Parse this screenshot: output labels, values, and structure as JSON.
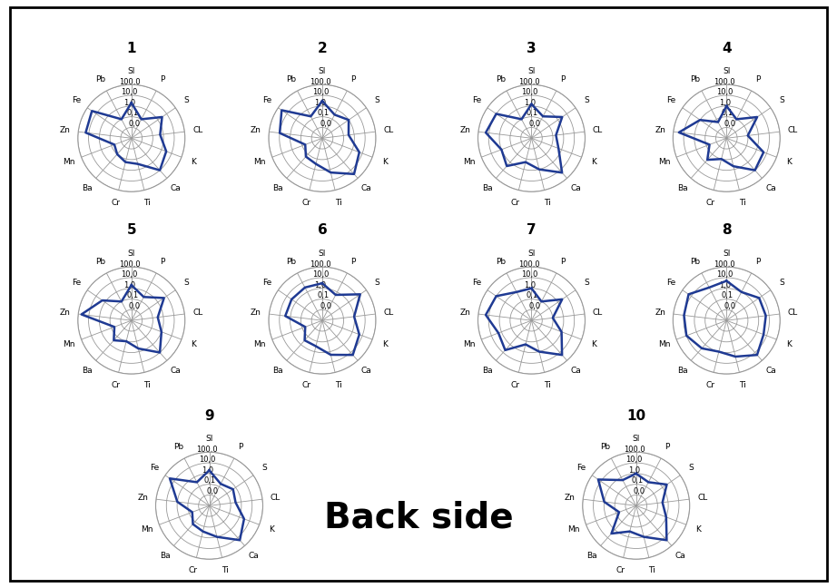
{
  "chart_data": [
    {
      "type": "radar",
      "title": "1",
      "categories": [
        "SI",
        "P",
        "S",
        "CL",
        "K",
        "Ca",
        "Ti",
        "Cr",
        "Ba",
        "Mn",
        "Zn",
        "Fe",
        "Pb"
      ],
      "values": [
        2,
        0.1,
        3,
        0.5,
        3,
        10,
        0.3,
        0.2,
        0.1,
        0.05,
        20,
        30,
        0.1
      ],
      "color": "#1f3a93",
      "log": "y",
      "grid": true,
      "ylim": [
        0.001,
        100
      ],
      "yticks": [
        {
          "value": 0.01,
          "label": "0,0"
        },
        {
          "value": 0.1,
          "label": "0,1"
        },
        {
          "value": 1,
          "label": "1,0"
        },
        {
          "value": 10,
          "label": "10,0"
        },
        {
          "value": 100,
          "label": "100,0"
        }
      ]
    },
    {
      "type": "radar",
      "title": "2",
      "categories": [
        "SI",
        "P",
        "S",
        "CL",
        "K",
        "Ca",
        "Ti",
        "Cr",
        "Ba",
        "Mn",
        "Zn",
        "Fe",
        "Pb"
      ],
      "values": [
        3,
        0.3,
        1,
        0.3,
        5,
        30,
        2,
        0.3,
        0.2,
        0.05,
        10,
        40,
        0.2
      ],
      "color": "#1f3a93",
      "log": "y",
      "grid": true,
      "ylim": [
        0.001,
        100
      ],
      "yticks": [
        {
          "value": 0.01,
          "label": "0,0"
        },
        {
          "value": 0.1,
          "label": "0,1"
        },
        {
          "value": 1,
          "label": "1,0"
        },
        {
          "value": 10,
          "label": "10,0"
        },
        {
          "value": 100,
          "label": "100,0"
        }
      ]
    },
    {
      "type": "radar",
      "title": "3",
      "categories": [
        "SI",
        "P",
        "S",
        "CL",
        "K",
        "Ca",
        "Ti",
        "Cr",
        "Ba",
        "Mn",
        "Zn",
        "Fe",
        "Pb"
      ],
      "values": [
        1.5,
        0.2,
        3,
        0.2,
        0.5,
        20,
        1,
        0.2,
        3,
        1,
        20,
        10,
        0.1
      ],
      "color": "#1f3a93",
      "log": "y",
      "grid": true,
      "ylim": [
        0.001,
        100
      ],
      "yticks": [
        {
          "value": 0.01,
          "label": "0,0"
        },
        {
          "value": 0.1,
          "label": "0,1"
        },
        {
          "value": 1,
          "label": "1,0"
        },
        {
          "value": 10,
          "label": "10,0"
        },
        {
          "value": 100,
          "label": "100,0"
        }
      ]
    },
    {
      "type": "radar",
      "title": "4",
      "categories": [
        "SI",
        "P",
        "S",
        "CL",
        "K",
        "Ca",
        "Ti",
        "Cr",
        "Ba",
        "Mn",
        "Zn",
        "Fe",
        "Pb"
      ],
      "values": [
        1,
        0.1,
        3,
        0.1,
        5,
        10,
        0.5,
        0.1,
        0.5,
        0.05,
        30,
        1,
        0.05
      ],
      "color": "#1f3a93",
      "log": "y",
      "grid": true,
      "ylim": [
        0.001,
        100
      ],
      "yticks": [
        {
          "value": 0.01,
          "label": "0,0"
        },
        {
          "value": 0.1,
          "label": "0,1"
        },
        {
          "value": 1,
          "label": "1,0"
        },
        {
          "value": 10,
          "label": "10,0"
        },
        {
          "value": 100,
          "label": "100,0"
        }
      ]
    },
    {
      "type": "radar",
      "title": "5",
      "categories": [
        "SI",
        "P",
        "S",
        "CL",
        "K",
        "Ca",
        "Ti",
        "Cr",
        "Ba",
        "Mn",
        "Zn",
        "Fe",
        "Pb"
      ],
      "values": [
        2,
        0.3,
        5,
        0.3,
        1,
        10,
        0.5,
        0.1,
        0.3,
        0.05,
        50,
        2,
        0.1
      ],
      "color": "#1f3a93",
      "log": "y",
      "grid": true,
      "ylim": [
        0.001,
        100
      ],
      "yticks": [
        {
          "value": 0.01,
          "label": "0,0"
        },
        {
          "value": 0.1,
          "label": "0,1"
        },
        {
          "value": 1,
          "label": "1,0"
        },
        {
          "value": 10,
          "label": "10,0"
        },
        {
          "value": 100,
          "label": "100,0"
        }
      ]
    },
    {
      "type": "radar",
      "title": "6",
      "categories": [
        "SI",
        "P",
        "S",
        "CL",
        "K",
        "Ca",
        "Ti",
        "Cr",
        "Ba",
        "Mn",
        "Zn",
        "Fe",
        "Pb"
      ],
      "values": [
        3,
        0.5,
        20,
        1,
        5,
        20,
        2,
        0.3,
        0.3,
        0.05,
        3,
        3,
        3
      ],
      "color": "#1f3a93",
      "log": "y",
      "grid": true,
      "ylim": [
        0.001,
        100
      ],
      "yticks": [
        {
          "value": 0.01,
          "label": "0,0"
        },
        {
          "value": 0.1,
          "label": "0,1"
        },
        {
          "value": 1,
          "label": "1,0"
        },
        {
          "value": 10,
          "label": "10,0"
        },
        {
          "value": 100,
          "label": "100,0"
        }
      ]
    },
    {
      "type": "radar",
      "title": "7",
      "categories": [
        "SI",
        "P",
        "S",
        "CL",
        "K",
        "Ca",
        "Ti",
        "Cr",
        "Ba",
        "Mn",
        "Zn",
        "Fe",
        "Pb"
      ],
      "values": [
        1,
        0.1,
        3,
        0.1,
        1,
        20,
        1,
        0.2,
        5,
        2,
        20,
        10,
        1
      ],
      "color": "#1f3a93",
      "log": "y",
      "grid": true,
      "ylim": [
        0.001,
        100
      ],
      "yticks": [
        {
          "value": 0.01,
          "label": "0,0"
        },
        {
          "value": 0.1,
          "label": "0,1"
        },
        {
          "value": 1,
          "label": "1,0"
        },
        {
          "value": 10,
          "label": "10,0"
        },
        {
          "value": 100,
          "label": "100,0"
        }
      ]
    },
    {
      "type": "radar",
      "title": "8",
      "categories": [
        "SI",
        "P",
        "S",
        "CL",
        "K",
        "Ca",
        "Ti",
        "Cr",
        "Ba",
        "Mn",
        "Zn",
        "Fe",
        "Pb"
      ],
      "values": [
        5,
        1,
        5,
        5,
        5,
        20,
        3,
        1,
        3,
        10,
        10,
        20,
        3
      ],
      "color": "#1f3a93",
      "log": "y",
      "grid": true,
      "ylim": [
        0.001,
        100
      ],
      "yticks": [
        {
          "value": 0.01,
          "label": "0,0"
        },
        {
          "value": 0.1,
          "label": "0,1"
        },
        {
          "value": 1,
          "label": "1,0"
        },
        {
          "value": 10,
          "label": "10,0"
        },
        {
          "value": 100,
          "label": "100,0"
        }
      ]
    },
    {
      "type": "radar",
      "title": "9",
      "categories": [
        "SI",
        "P",
        "S",
        "CL",
        "K",
        "Ca",
        "Ti",
        "Cr",
        "Ba",
        "Mn",
        "Zn",
        "Fe",
        "Pb"
      ],
      "values": [
        2,
        0.2,
        0.5,
        0.3,
        3,
        20,
        1,
        0.3,
        0.2,
        0.05,
        1,
        30,
        0.3
      ],
      "color": "#1f3a93",
      "log": "y",
      "grid": true,
      "ylim": [
        0.001,
        100
      ],
      "yticks": [
        {
          "value": 0.01,
          "label": "0,0"
        },
        {
          "value": 0.1,
          "label": "0,1"
        },
        {
          "value": 1,
          "label": "1,0"
        },
        {
          "value": 10,
          "label": "10,0"
        },
        {
          "value": 100,
          "label": "100,0"
        }
      ]
    },
    {
      "type": "radar",
      "title": "10",
      "categories": [
        "SI",
        "P",
        "S",
        "CL",
        "K",
        "Ca",
        "Ti",
        "Cr",
        "Ba",
        "Mn",
        "Zn",
        "Fe",
        "Pb"
      ],
      "values": [
        1,
        0.3,
        3,
        0.3,
        1,
        20,
        1,
        0.3,
        3,
        0.05,
        1,
        20,
        0.5
      ],
      "color": "#1f3a93",
      "log": "y",
      "grid": true,
      "ylim": [
        0.001,
        100
      ],
      "yticks": [
        {
          "value": 0.01,
          "label": "0,0"
        },
        {
          "value": 0.1,
          "label": "0,1"
        },
        {
          "value": 1,
          "label": "1,0"
        },
        {
          "value": 10,
          "label": "10,0"
        },
        {
          "value": 100,
          "label": "100,0"
        }
      ]
    }
  ],
  "annotation": "Back side"
}
